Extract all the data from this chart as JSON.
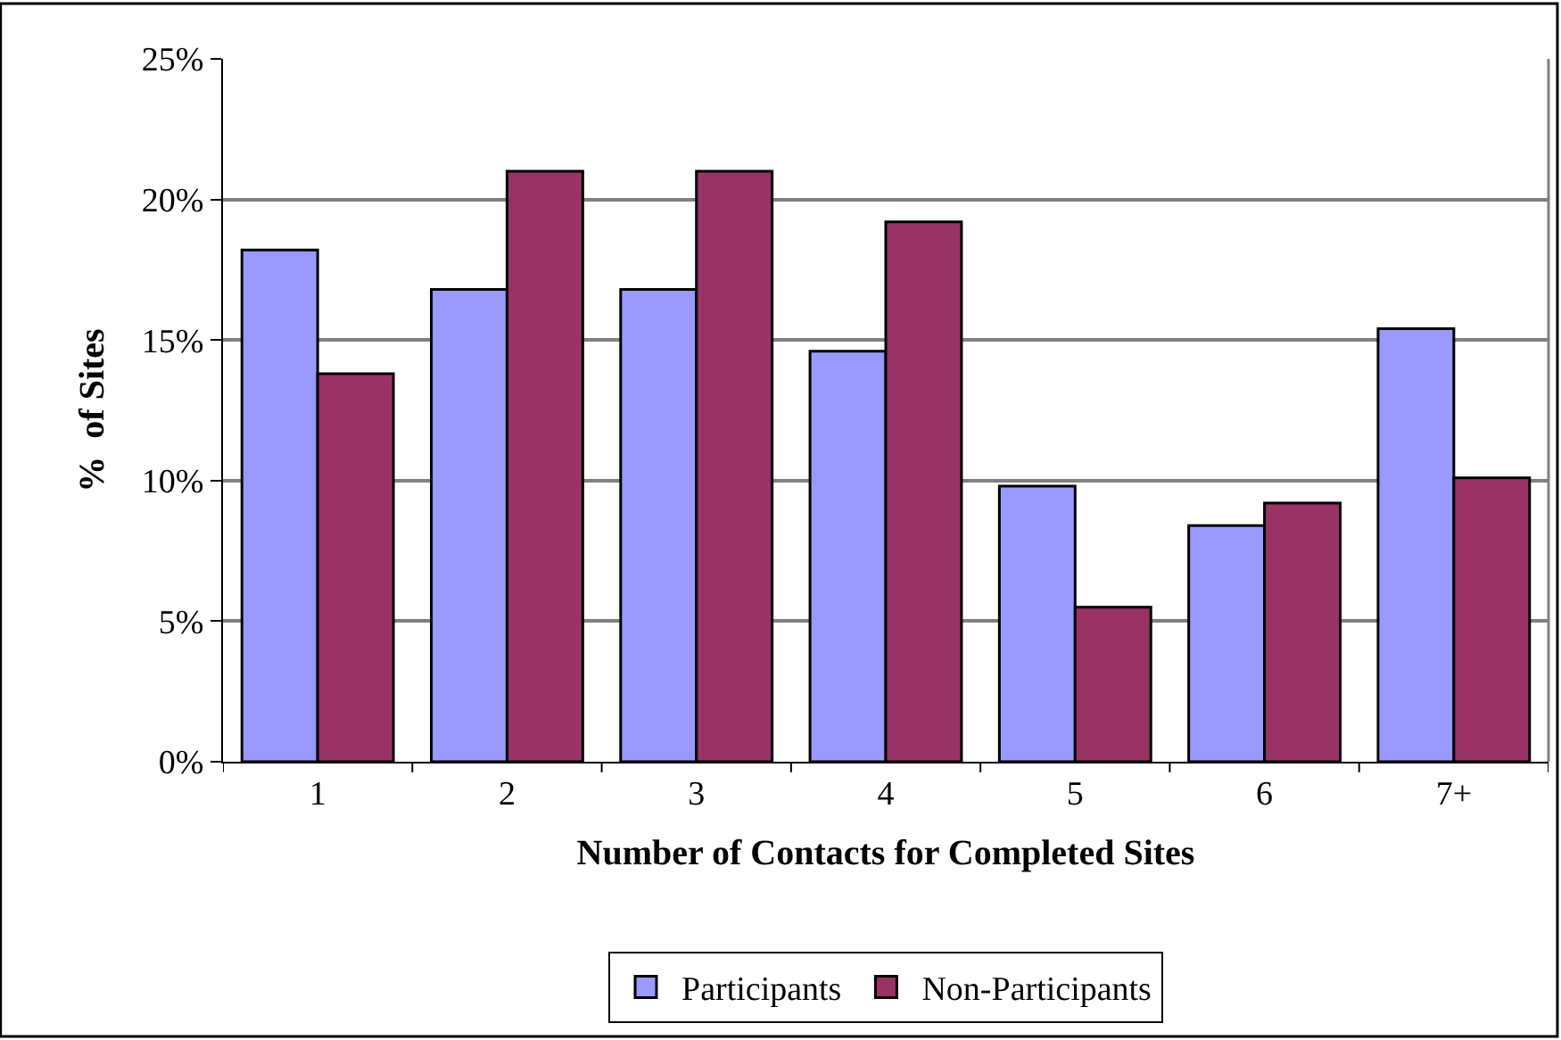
{
  "chart_data": {
    "type": "bar",
    "xlabel": "Number of Contacts for Completed Sites",
    "ylabel": "%  of Sites",
    "categories": [
      "1",
      "2",
      "3",
      "4",
      "5",
      "6",
      "7+"
    ],
    "series": [
      {
        "name": "Participants",
        "color": "#9999ff",
        "values": [
          18.2,
          16.8,
          16.8,
          14.6,
          9.8,
          8.4,
          15.4
        ]
      },
      {
        "name": "Non-Participants",
        "color": "#993366",
        "values": [
          13.8,
          21.0,
          21.0,
          19.2,
          5.5,
          9.2,
          10.1
        ]
      }
    ],
    "ylim": [
      0,
      25
    ],
    "yticks": [
      {
        "value": 0,
        "label": "0%"
      },
      {
        "value": 5,
        "label": "5%"
      },
      {
        "value": 10,
        "label": "10%"
      },
      {
        "value": 15,
        "label": "15%"
      },
      {
        "value": 20,
        "label": "20%"
      },
      {
        "value": 25,
        "label": "25%"
      }
    ],
    "grid": "y",
    "legend": "bottom"
  }
}
